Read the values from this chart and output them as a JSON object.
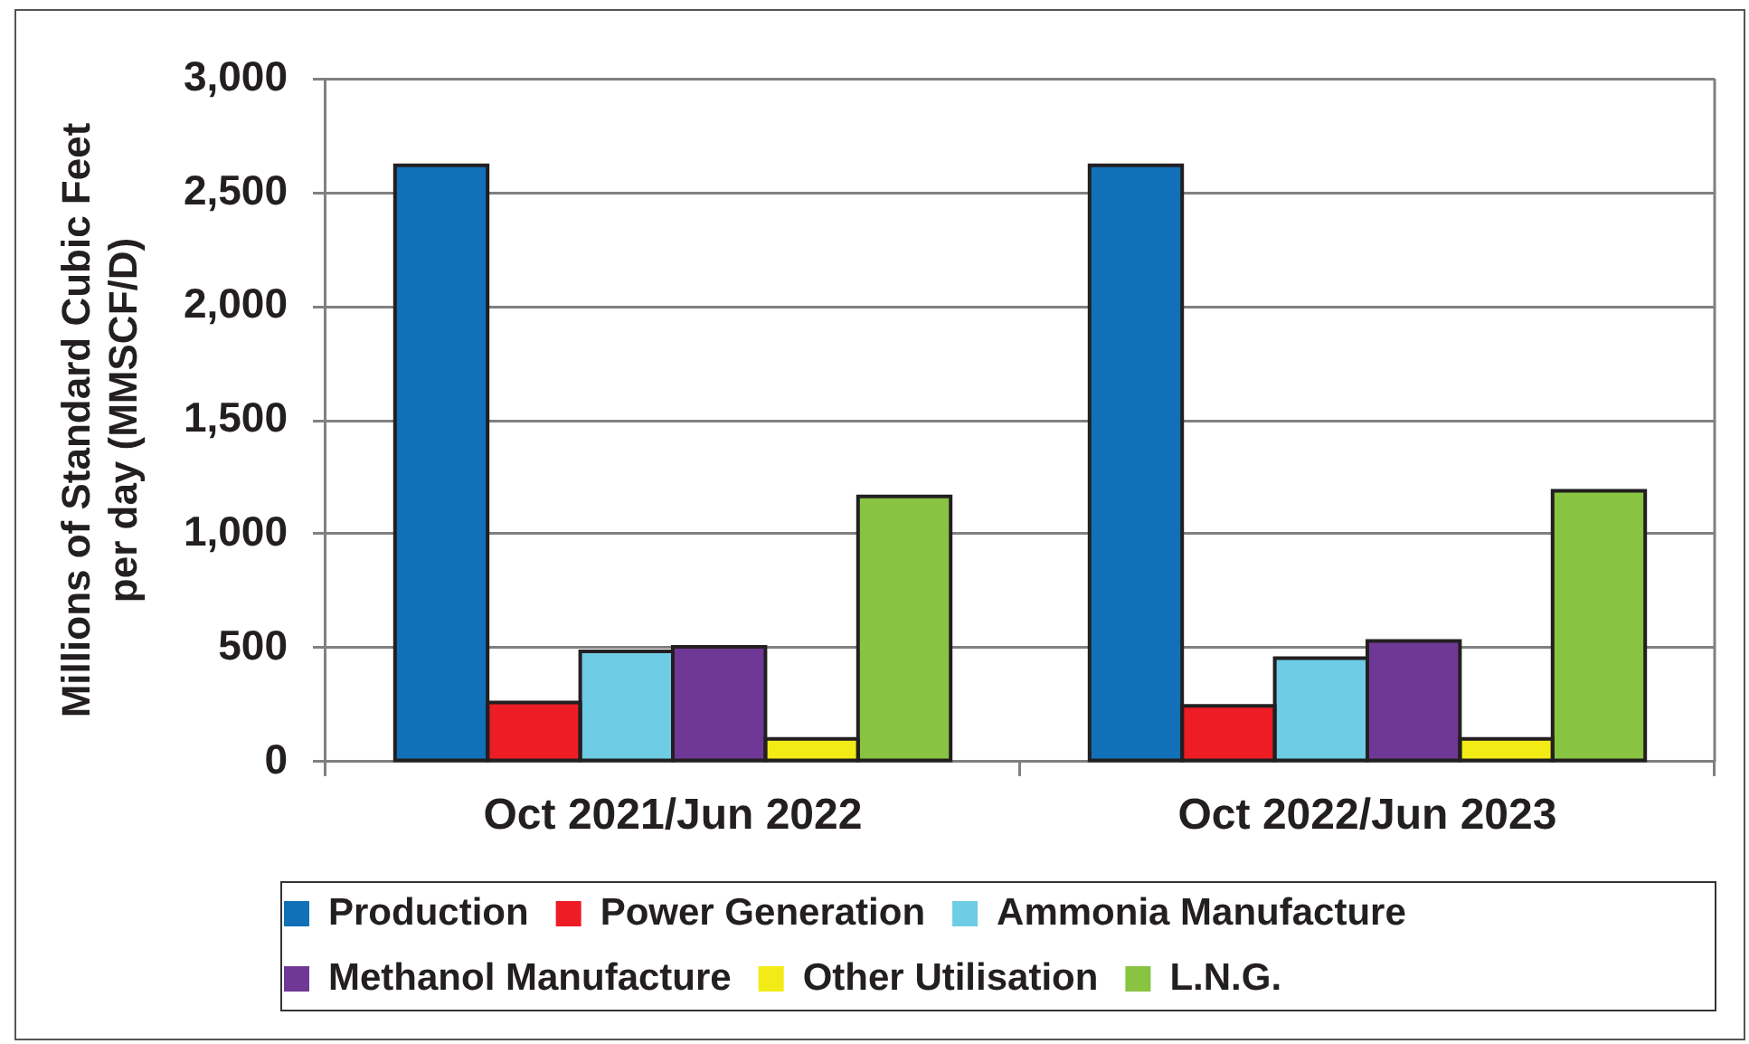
{
  "chart_data": {
    "type": "bar",
    "categories": [
      "Oct 2021/Jun 2022",
      "Oct 2022/Jun 2023"
    ],
    "ylabel": "Millions of Standard Cubic Feet per day (MMSCF/D)",
    "ylim": [
      0,
      3000
    ],
    "yticks": [
      0,
      500,
      {
        "value": 1000,
        "label": "1,000"
      },
      {
        "value": 1500,
        "label": "1,500"
      },
      {
        "value": 2000,
        "label": "2,000"
      },
      {
        "value": 2500,
        "label": "2,500"
      },
      {
        "value": 3000,
        "label": "3,000"
      }
    ],
    "grid": "y",
    "legend": "bottom",
    "series": [
      {
        "name": "Production",
        "color": "#1170b8",
        "values": [
          2620,
          2620
        ]
      },
      {
        "name": "Power Generation",
        "color": "#ee1c25",
        "values": [
          260,
          245
        ]
      },
      {
        "name": "Ammonia Manufacture",
        "color": "#6ecce4",
        "values": [
          485,
          455
        ]
      },
      {
        "name": "Methanol Manufacture",
        "color": "#6f3896",
        "values": [
          505,
          530
        ]
      },
      {
        "name": "Other Utilisation",
        "color": "#f3eb16",
        "values": [
          100,
          100
        ]
      },
      {
        "name": "L.N.G.",
        "color": "#88c441",
        "values": [
          1165,
          1190
        ]
      }
    ]
  }
}
